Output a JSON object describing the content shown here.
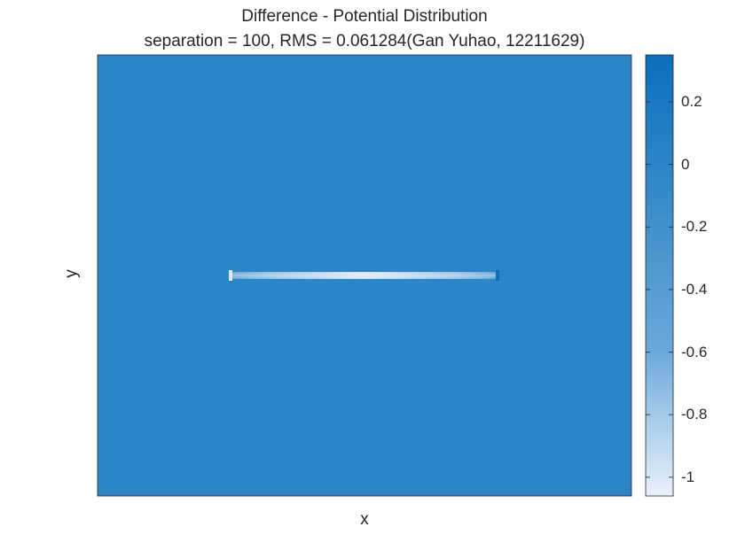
{
  "chart_data": {
    "type": "heatmap",
    "title": "Difference - Potential Distribution",
    "subtitle": "separation = 100, RMS = 0.061284(Gan Yuhao, 12211629)",
    "xlabel": "x",
    "ylabel": "y",
    "background_value": 0,
    "grid": false,
    "colorbar": {
      "range": [
        -1.06,
        0.35
      ],
      "ticks": [
        0.2,
        0,
        -0.2,
        -0.4,
        -0.6,
        -0.8,
        -1
      ],
      "tick_labels": [
        "0.2",
        "0",
        "-0.2",
        "-0.4",
        "-0.6",
        "-0.8",
        "-1"
      ],
      "colormap": [
        "#e8f1fa",
        "#6aa8da",
        "#388cc9",
        "#0a6fbd"
      ],
      "placement": "right"
    },
    "features": [
      {
        "name": "line-charge strip",
        "center_value": -1.0,
        "edge_value": -0.5,
        "end_spike_values": [
          -1.0,
          0.35
        ]
      }
    ]
  }
}
